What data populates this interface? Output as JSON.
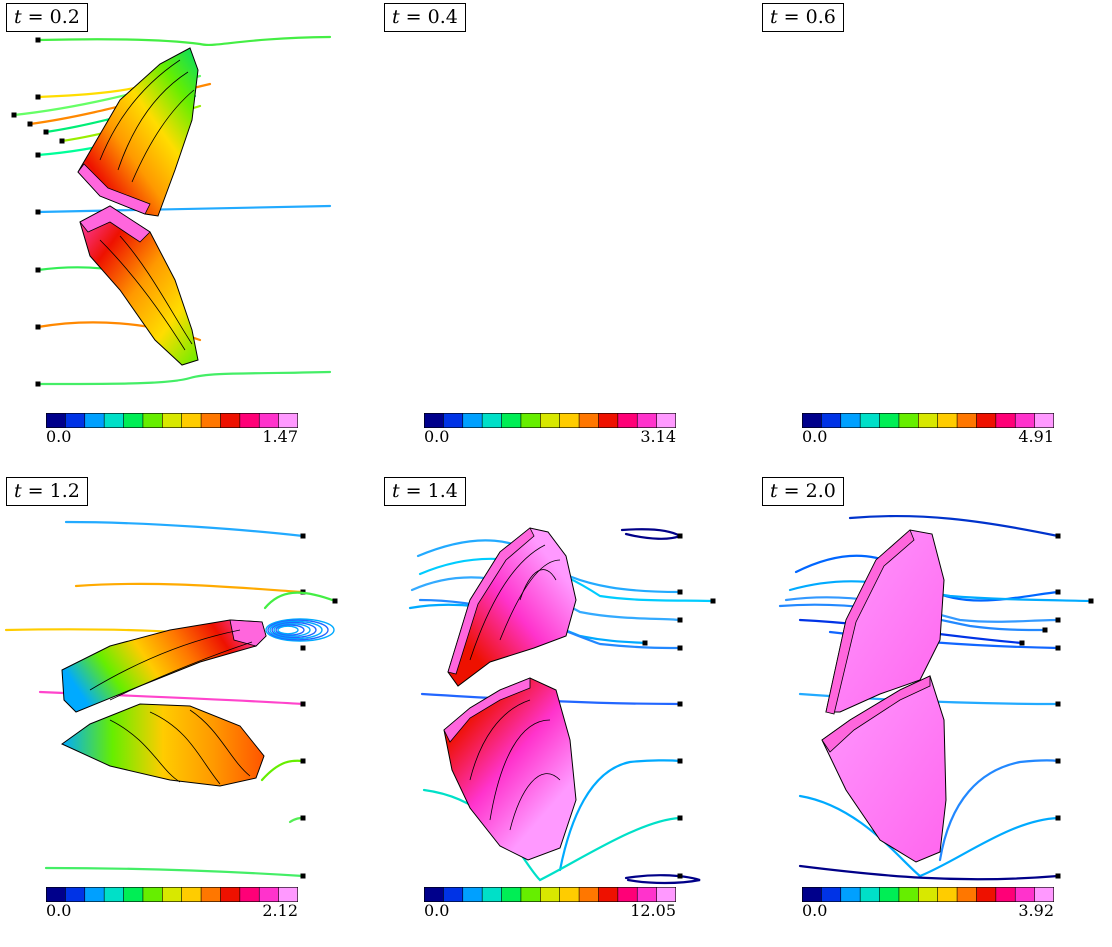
{
  "panels": [
    {
      "t_label": "0.2",
      "cbar_min": "0.0",
      "cbar_max": "1.47",
      "pose": "t02"
    },
    {
      "t_label": "0.4",
      "cbar_min": "0.0",
      "cbar_max": "3.14",
      "pose": "t04"
    },
    {
      "t_label": "0.6",
      "cbar_min": "0.0",
      "cbar_max": "4.91",
      "pose": "t06"
    },
    {
      "t_label": "1.2",
      "cbar_min": "0.0",
      "cbar_max": "2.12",
      "pose": "t12"
    },
    {
      "t_label": "1.4",
      "cbar_min": "0.0",
      "cbar_max": "12.05",
      "pose": "t14"
    },
    {
      "t_label": "2.0",
      "cbar_min": "0.0",
      "cbar_max": "3.92",
      "pose": "t20"
    }
  ],
  "t_symbol": "t",
  "colormap": [
    "#00008b",
    "#0033e6",
    "#00a0ff",
    "#00e0c8",
    "#00ee55",
    "#66ee00",
    "#d8e800",
    "#ffcc00",
    "#ff7700",
    "#ee1100",
    "#ff0077",
    "#ff33cc",
    "#ff99ff"
  ]
}
